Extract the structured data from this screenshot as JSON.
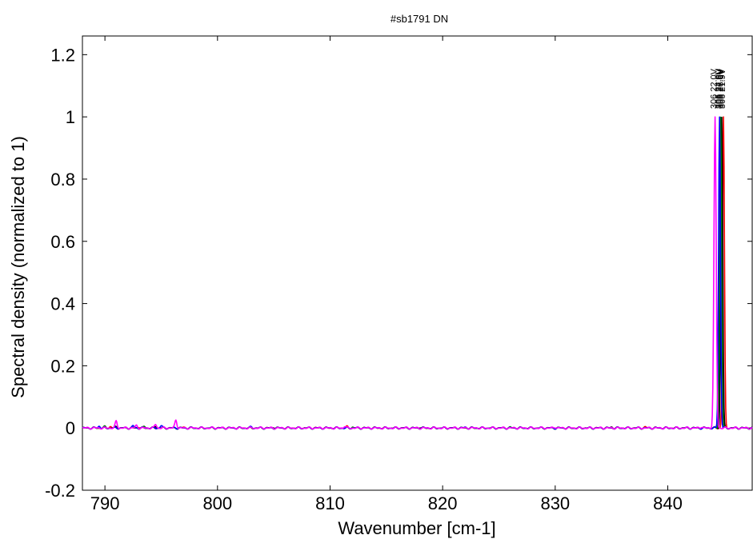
{
  "chart_data": {
    "type": "line",
    "title": "#sb1791 DN",
    "xlabel": "Wavenumber [cm-1]",
    "ylabel": "Spectral density (normalized to 1)",
    "xlim": [
      788,
      847.5
    ],
    "ylim": [
      -0.2,
      1.26
    ],
    "xticks": [
      790,
      800,
      810,
      820,
      830,
      840
    ],
    "yticks": [
      -0.2,
      0,
      0.2,
      0.4,
      0.6,
      0.8,
      1,
      1.2
    ],
    "grid": false,
    "series": [
      {
        "color": "#ff0000",
        "peak_label": "306 21.9V",
        "peak_x": 844.95,
        "peak_width": 0.12,
        "noise": [
          [
            790.5,
            0.005
          ],
          [
            793,
            0.004
          ],
          [
            797,
            0.003
          ],
          [
            811.5,
            0.004
          ],
          [
            838,
            0.003
          ]
        ]
      },
      {
        "color": "#000000",
        "peak_label": "306 26.0V",
        "peak_x": 844.8,
        "peak_width": 0.12,
        "noise": [
          [
            791,
            0.004
          ],
          [
            794.5,
            0.006
          ],
          [
            805,
            0.003
          ],
          [
            818,
            0.003
          ],
          [
            835,
            0.003
          ]
        ]
      },
      {
        "color": "#008000",
        "peak_label": "306 27.6V",
        "peak_x": 844.7,
        "peak_width": 0.12,
        "noise": [
          [
            790,
            0.004
          ],
          [
            793.5,
            0.005
          ],
          [
            812,
            0.003
          ],
          [
            826,
            0.002
          ]
        ]
      },
      {
        "color": "#0000ff",
        "peak_label": "306 24.0V",
        "peak_x": 844.6,
        "peak_width": 0.12,
        "noise": [
          [
            789.5,
            0.006
          ],
          [
            792.5,
            0.007
          ],
          [
            795,
            0.008
          ],
          [
            803,
            0.003
          ],
          [
            822,
            0.002
          ]
        ]
      },
      {
        "color": "#ff00ff",
        "peak_label": "306 22.0V",
        "peak_x": 844.2,
        "peak_width": 0.14,
        "noise": [
          [
            791,
            0.022
          ],
          [
            792.8,
            0.008
          ],
          [
            794.5,
            0.012
          ],
          [
            796.3,
            0.026
          ],
          [
            811.3,
            0.006
          ],
          [
            830,
            0.003
          ],
          [
            843,
            0.004
          ]
        ]
      }
    ]
  }
}
